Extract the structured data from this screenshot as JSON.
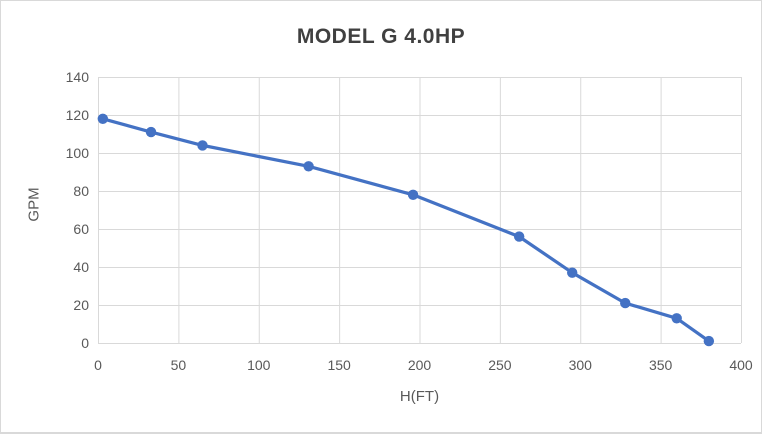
{
  "colors": {
    "series_blue": "#4472C4",
    "grid_gray": "#d9d9d9",
    "tick_text_gray": "#595959",
    "title_gray": "#404040",
    "frame_border": "#d9d9d9",
    "background": "#ffffff"
  },
  "chart_data": {
    "type": "line",
    "title": "MODEL G 4.0HP",
    "xlabel": "H(FT)",
    "ylabel": "GPM",
    "x": [
      3,
      33,
      65,
      131,
      196,
      262,
      295,
      328,
      360,
      380
    ],
    "y": [
      118,
      111,
      104,
      93,
      78,
      56,
      37,
      21,
      13,
      1
    ],
    "xlim": [
      0,
      400
    ],
    "ylim": [
      0,
      140
    ],
    "xticks": [
      0,
      50,
      100,
      150,
      200,
      250,
      300,
      350,
      400
    ],
    "yticks": [
      0,
      20,
      40,
      60,
      80,
      100,
      120,
      140
    ],
    "grid": true,
    "legend": "none",
    "line_color": "#4472C4",
    "marker": "circle"
  }
}
